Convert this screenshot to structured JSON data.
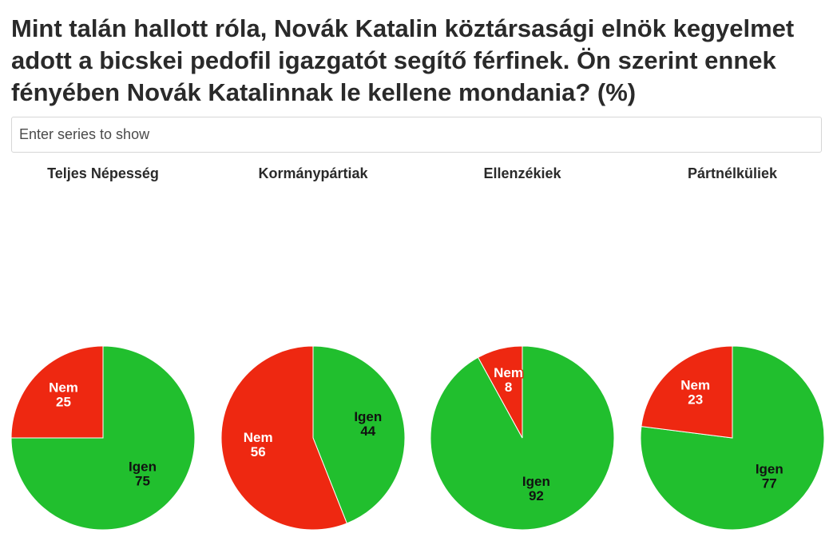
{
  "title": "Mint talán hallott róla, Novák Katalin köztársasági elnök kegyelmet adott a bicskei pedofil igazgatót segítő férfinek.  Ön szerint ennek fényében Novák Katalinnak le kellene mondania? (%)",
  "search": {
    "placeholder": "Enter series to show"
  },
  "colors": {
    "igen": "#21bf2e",
    "nem": "#ee2811"
  },
  "chart_data": [
    {
      "type": "pie",
      "title": "Teljes Népesség",
      "slices": [
        {
          "label": "Igen",
          "value": 75,
          "color": "#21bf2e"
        },
        {
          "label": "Nem",
          "value": 25,
          "color": "#ee2811"
        }
      ]
    },
    {
      "type": "pie",
      "title": "Kormánypártiak",
      "slices": [
        {
          "label": "Igen",
          "value": 44,
          "color": "#21bf2e"
        },
        {
          "label": "Nem",
          "value": 56,
          "color": "#ee2811"
        }
      ]
    },
    {
      "type": "pie",
      "title": "Ellenzékiek",
      "slices": [
        {
          "label": "Igen",
          "value": 92,
          "color": "#21bf2e"
        },
        {
          "label": "Nem",
          "value": 8,
          "color": "#ee2811"
        }
      ]
    },
    {
      "type": "pie",
      "title": "Pártnélküliek",
      "slices": [
        {
          "label": "Igen",
          "value": 77,
          "color": "#21bf2e"
        },
        {
          "label": "Nem",
          "value": 23,
          "color": "#ee2811"
        }
      ]
    }
  ]
}
